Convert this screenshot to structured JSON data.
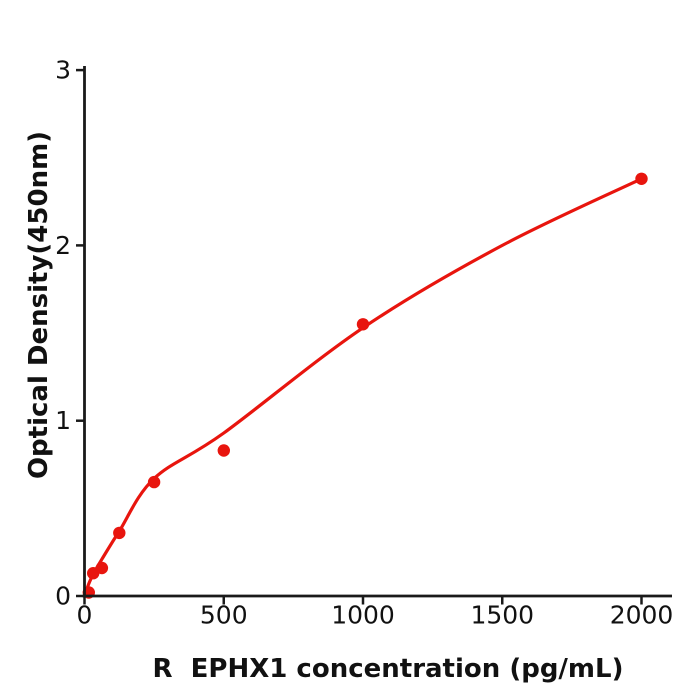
{
  "figure": {
    "background_color": "#ffffff",
    "text_color": "#111111"
  },
  "chart_data": {
    "type": "scatter",
    "title": "",
    "xlabel": "R  EPHX1 concentration (pg/mL)",
    "ylabel": "Optical Density(450nm)",
    "x_ticks": [
      0,
      500,
      1000,
      1500,
      2000
    ],
    "y_ticks": [
      0,
      1,
      2,
      3
    ],
    "xlim": [
      0,
      2110
    ],
    "ylim": [
      0,
      3.02
    ],
    "grid": false,
    "legend": "none",
    "axis_color": "#1a1a1a",
    "point_color": "#e8150e",
    "curve_color": "#e8150e",
    "series": [
      {
        "name": "standard-points",
        "points": [
          {
            "x": 15.6,
            "y": 0.02
          },
          {
            "x": 31.25,
            "y": 0.13
          },
          {
            "x": 62.5,
            "y": 0.16
          },
          {
            "x": 125,
            "y": 0.36
          },
          {
            "x": 250,
            "y": 0.65
          },
          {
            "x": 500,
            "y": 0.83
          },
          {
            "x": 1000,
            "y": 1.55
          },
          {
            "x": 2000,
            "y": 2.38
          }
        ]
      }
    ],
    "fit_curve": {
      "name": "fitted-standard-curve",
      "points": [
        [
          0,
          0.0
        ],
        [
          15.6,
          0.07
        ],
        [
          31.25,
          0.125
        ],
        [
          62.5,
          0.21
        ],
        [
          125,
          0.37
        ],
        [
          250,
          0.67
        ],
        [
          500,
          0.93
        ],
        [
          1000,
          1.53
        ],
        [
          1500,
          2.0
        ],
        [
          2000,
          2.38
        ]
      ]
    }
  }
}
